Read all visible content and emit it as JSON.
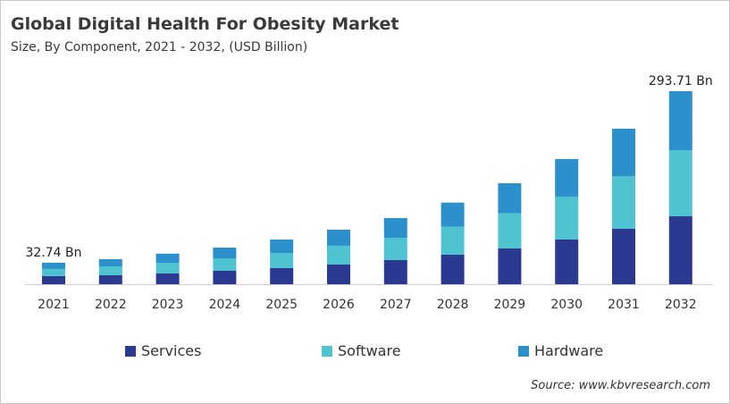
{
  "chart_data": {
    "type": "bar",
    "stacked": true,
    "title": "Global Digital Health For Obesity Market",
    "subtitle": "Size, By Component, 2021 - 2032, (USD Billion)",
    "categories": [
      "2021",
      "2022",
      "2023",
      "2024",
      "2025",
      "2026",
      "2027",
      "2028",
      "2029",
      "2030",
      "2031",
      "2032"
    ],
    "series": [
      {
        "name": "Services",
        "color": "#2b3990",
        "values": [
          12.3,
          13.6,
          16.3,
          20.4,
          24.5,
          29.9,
          36.7,
          44.9,
          54.4,
          68.0,
          84.3,
          103.4
        ]
      },
      {
        "name": "Software",
        "color": "#4fc3cf",
        "values": [
          10.9,
          13.6,
          16.3,
          19.0,
          23.1,
          28.6,
          34.0,
          42.6,
          53.4,
          65.3,
          80.2,
          100.6
        ]
      },
      {
        "name": "Hardware",
        "color": "#2b90cc",
        "values": [
          9.54,
          10.9,
          14.0,
          16.3,
          20.4,
          24.5,
          29.9,
          36.7,
          45.8,
          57.1,
          72.1,
          89.71
        ]
      }
    ],
    "data_labels": [
      {
        "category": "2021",
        "text": "32.74 Bn"
      },
      {
        "category": "2032",
        "text": "293.71 Bn"
      }
    ],
    "ylim": [
      0,
      300
    ],
    "grid": false,
    "legend_position": "bottom",
    "source": "Source: www.kbvresearch.com"
  }
}
